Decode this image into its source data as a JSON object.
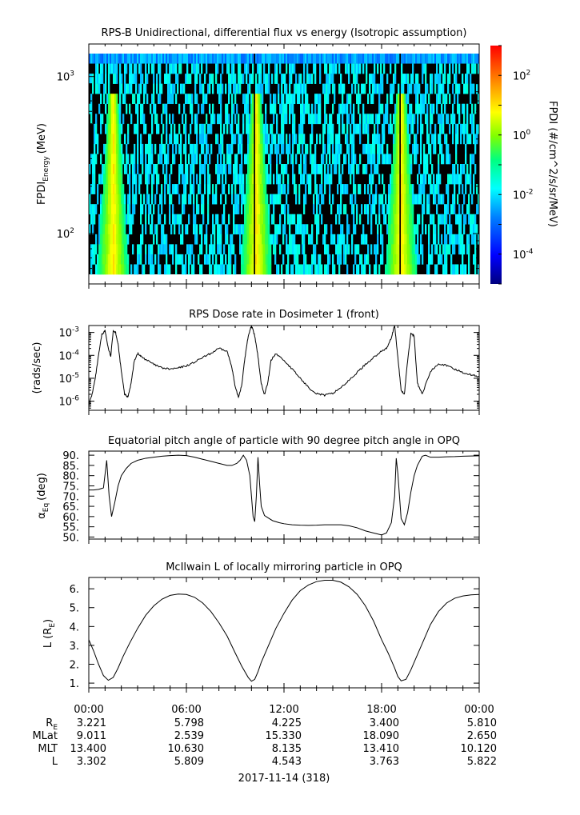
{
  "chart_data": [
    {
      "type": "heatmap",
      "title": "RPS-B  Unidirectional, differential flux vs energy (Isotropic assumption)",
      "ylabel_main": "FPDI",
      "ylabel_sub": "Energy",
      "ylabel_unit": "(MeV)",
      "yscale": "log",
      "ylim": [
        55,
        1400
      ],
      "y_ticks": [
        {
          "base": "10",
          "exp": "2",
          "value": 100
        },
        {
          "base": "10",
          "exp": "3",
          "value": 1000
        }
      ],
      "colorbar": {
        "label": "FPDI (#/cm^2/s/sr/MeV)",
        "scale": "log",
        "range": [
          1e-05,
          1000
        ],
        "ticks": [
          {
            "base": "10",
            "exp": "-4",
            "value": 0.0001
          },
          {
            "base": "10",
            "exp": "-2",
            "value": 0.01
          },
          {
            "base": "10",
            "exp": "0",
            "value": 1
          },
          {
            "base": "10",
            "exp": "2",
            "value": 100
          }
        ]
      },
      "bright_passes_hours": [
        1.5,
        10.3,
        19.2
      ],
      "gap_hours": [
        10.2,
        19.15
      ]
    },
    {
      "type": "line",
      "title": "RPS  Dose rate in Dosimeter 1 (front)",
      "ylabel": "(rads/sec)",
      "yscale": "log",
      "ylim": [
        4e-07,
        0.002
      ],
      "y_ticks": [
        {
          "base": "10",
          "exp": "-3",
          "value": 0.001
        },
        {
          "base": "10",
          "exp": "-4",
          "value": 0.0001
        },
        {
          "base": "10",
          "exp": "-5",
          "value": 1e-05
        },
        {
          "base": "10",
          "exp": "-6",
          "value": 1e-06
        }
      ],
      "series": [
        {
          "x": [
            0,
            0.2,
            0.4,
            0.6,
            0.8,
            1.0,
            1.2,
            1.35,
            1.5,
            1.65,
            1.8,
            2.0,
            2.2,
            2.4,
            2.6,
            2.8,
            3.0,
            3.2,
            3.6,
            4.0,
            4.5,
            5.0,
            5.5,
            6.0,
            6.5,
            7.0,
            7.5,
            8.0,
            8.5,
            8.8,
            9.0,
            9.2,
            9.4,
            9.6,
            9.8,
            10.0,
            10.2,
            10.4,
            10.6,
            10.8,
            11.0,
            11.2,
            11.5,
            12.0,
            12.5,
            13.0,
            13.5,
            14.0,
            14.5,
            15.0,
            15.5,
            16.0,
            16.5,
            17.0,
            17.5,
            18.0,
            18.3,
            18.6,
            18.8,
            19.0,
            19.2,
            19.4,
            19.6,
            19.8,
            20.0,
            20.2,
            20.5,
            21.0,
            21.5,
            22.0,
            22.5,
            23.0,
            23.5,
            24.0
          ],
          "y": [
            7e-07,
            2e-06,
            1e-05,
            0.0001,
            0.0008,
            0.0012,
            0.0002,
            9e-05,
            0.0012,
            0.001,
            0.0003,
            2e-05,
            2e-06,
            1.5e-06,
            6e-06,
            6e-05,
            0.00012,
            9e-05,
            6e-05,
            4e-05,
            2.8e-05,
            2.5e-05,
            2.8e-05,
            3.5e-05,
            5e-05,
            8e-05,
            0.00012,
            0.0002,
            0.00015,
            3e-05,
            4e-06,
            1.5e-06,
            5e-06,
            8e-05,
            0.0007,
            0.002,
            0.0007,
            9e-05,
            6e-06,
            2e-06,
            6e-06,
            6e-05,
            0.00012,
            6e-05,
            2.5e-05,
            1e-05,
            4e-06,
            2.2e-06,
            1.8e-06,
            2.2e-06,
            4e-06,
            8e-06,
            1.8e-05,
            4e-05,
            8e-05,
            0.00015,
            0.0002,
            0.0006,
            0.002,
            8e-05,
            3e-06,
            2e-06,
            6e-05,
            0.0009,
            0.0007,
            6e-06,
            2e-06,
            2e-05,
            4.5e-05,
            3.5e-05,
            2.5e-05,
            1.8e-05,
            1.4e-05,
            1.2e-05
          ]
        }
      ]
    },
    {
      "type": "line",
      "title": "Equatorial pitch angle of particle with 90 degree pitch angle in OPQ",
      "ylabel_main": "α",
      "ylabel_sub": "Eq",
      "ylabel_unit": "(deg)",
      "ylim": [
        49,
        92
      ],
      "y_ticks": [
        90,
        85,
        80,
        75,
        70,
        65,
        60,
        55,
        50
      ],
      "y_tick_labels": [
        "90.",
        "85.",
        "80.",
        "75.",
        "70.",
        "65.",
        "60.",
        "55.",
        "50."
      ],
      "series": [
        {
          "x": [
            0,
            0.3,
            0.6,
            0.9,
            1.1,
            1.25,
            1.4,
            1.6,
            1.8,
            2.0,
            2.3,
            2.6,
            3.0,
            3.5,
            4.0,
            4.5,
            5.0,
            5.5,
            6.0,
            6.5,
            7.0,
            7.5,
            8.0,
            8.5,
            8.8,
            9.1,
            9.3,
            9.5,
            9.7,
            9.9,
            10.0,
            10.1,
            10.2,
            10.3,
            10.4,
            10.5,
            10.6,
            10.8,
            11.0,
            11.3,
            11.7,
            12.0,
            12.5,
            13.0,
            13.5,
            14.0,
            14.5,
            15.0,
            15.5,
            16.0,
            16.5,
            17.0,
            17.5,
            18.0,
            18.3,
            18.6,
            18.8,
            18.9,
            19.0,
            19.1,
            19.2,
            19.4,
            19.6,
            19.8,
            20.0,
            20.2,
            20.5,
            20.7,
            21.0,
            21.5,
            22.0,
            22.5,
            23.0,
            23.5,
            24.0
          ],
          "y": [
            73,
            73,
            73.3,
            74,
            87.5,
            70,
            60,
            67,
            75,
            80,
            83.5,
            86,
            87.5,
            88.5,
            89,
            89.5,
            89.8,
            90,
            89.8,
            89,
            88,
            87,
            86,
            85,
            85,
            86,
            87.5,
            90,
            87.5,
            80,
            70,
            60,
            57.5,
            70,
            89,
            76,
            65,
            60.5,
            59.5,
            58,
            57,
            56.5,
            56,
            55.8,
            55.7,
            55.8,
            56,
            56,
            56,
            55.5,
            54.5,
            53,
            52,
            51,
            52,
            57,
            70,
            88.5,
            81,
            70,
            59,
            56,
            62,
            72,
            80,
            85,
            89.5,
            90,
            89,
            89,
            89.2,
            89.3,
            89.5,
            89.6,
            89.7
          ]
        }
      ]
    },
    {
      "type": "line",
      "title": "McIlwain L of locally mirroring particle in OPQ",
      "ylabel_main": "L (R",
      "ylabel_sub": "E",
      "ylabel_unit": ")",
      "ylim": [
        0.75,
        6.6
      ],
      "y_ticks": [
        1,
        2,
        3,
        4,
        5,
        6
      ],
      "y_tick_labels": [
        "1.",
        "2.",
        "3.",
        "4.",
        "5.",
        "6."
      ],
      "series": [
        {
          "x": [
            0,
            0.3,
            0.6,
            0.9,
            1.2,
            1.5,
            1.8,
            2.1,
            2.5,
            3.0,
            3.5,
            4.0,
            4.5,
            5.0,
            5.5,
            6.0,
            6.5,
            7.0,
            7.5,
            8.0,
            8.5,
            9.0,
            9.4,
            9.8,
            10.0,
            10.2,
            10.4,
            10.6,
            11.0,
            11.5,
            12.0,
            12.5,
            13.0,
            13.5,
            14.0,
            14.5,
            15.0,
            15.5,
            16.0,
            16.5,
            17.0,
            17.5,
            18.0,
            18.4,
            18.8,
            19.0,
            19.2,
            19.5,
            19.8,
            20.2,
            20.6,
            21.0,
            21.5,
            22.0,
            22.5,
            23.0,
            23.5,
            24.0
          ],
          "y": [
            3.3,
            2.7,
            2.0,
            1.4,
            1.15,
            1.3,
            1.8,
            2.4,
            3.1,
            3.9,
            4.6,
            5.1,
            5.45,
            5.65,
            5.72,
            5.7,
            5.55,
            5.25,
            4.8,
            4.2,
            3.5,
            2.6,
            1.9,
            1.3,
            1.1,
            1.2,
            1.6,
            2.1,
            2.9,
            3.9,
            4.7,
            5.4,
            5.9,
            6.2,
            6.38,
            6.45,
            6.45,
            6.35,
            6.1,
            5.7,
            5.1,
            4.3,
            3.3,
            2.6,
            1.8,
            1.35,
            1.12,
            1.2,
            1.7,
            2.5,
            3.3,
            4.1,
            4.8,
            5.25,
            5.5,
            5.62,
            5.68,
            5.7
          ]
        }
      ]
    }
  ],
  "x_axis": {
    "date_label": "2017-11-14 (318)",
    "tick_labels": [
      "00:00",
      "06:00",
      "12:00",
      "18:00",
      "00:00"
    ],
    "tick_hours": [
      0,
      6,
      12,
      18,
      24
    ]
  },
  "ephemeris": {
    "rows": [
      {
        "name": "R",
        "sub": "E",
        "values": [
          "3.221",
          "5.798",
          "4.225",
          "3.400",
          "5.810"
        ]
      },
      {
        "name": "MLat",
        "sub": "",
        "values": [
          "9.011",
          "2.539",
          "15.330",
          "18.090",
          "2.650"
        ]
      },
      {
        "name": "MLT",
        "sub": "",
        "values": [
          "13.400",
          "10.630",
          "8.135",
          "13.410",
          "10.120"
        ]
      },
      {
        "name": "L",
        "sub": "",
        "values": [
          "3.302",
          "5.809",
          "4.543",
          "3.763",
          "5.822"
        ]
      }
    ]
  },
  "colors": {
    "line": "#000000",
    "colormap": [
      "#00007f",
      "#0000ff",
      "#0080ff",
      "#00ffff",
      "#00ff80",
      "#80ff00",
      "#ffff00",
      "#ff8000",
      "#ff0000"
    ]
  }
}
